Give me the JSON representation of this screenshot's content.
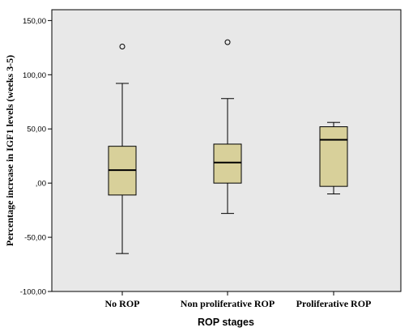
{
  "chart_data": {
    "type": "boxplot",
    "xlabel": "ROP stages",
    "ylabel": "Percentage increase in IGF1 levels (weeks 3-5)",
    "ylim": [
      -100,
      160
    ],
    "yticks": [
      -100,
      -50,
      0,
      50,
      100,
      150
    ],
    "ytick_labels": [
      "-100,00",
      "-50,00",
      ",00",
      "50,00",
      "100,00",
      "150,00"
    ],
    "grid": false,
    "colors": {
      "plot_background": "#e8e8e8",
      "box_fill": "#d8d09a",
      "stroke": "#000000"
    },
    "categories": [
      "No ROP",
      "Non proliferative ROP",
      "Proliferative ROP"
    ],
    "boxes": [
      {
        "category": "No ROP",
        "whisker_low": -65,
        "q1": -11,
        "median": 12,
        "q3": 34,
        "whisker_high": 92,
        "outliers": [
          126
        ]
      },
      {
        "category": "Non proliferative ROP",
        "whisker_low": -28,
        "q1": 0,
        "median": 19,
        "q3": 36,
        "whisker_high": 78,
        "outliers": [
          130
        ]
      },
      {
        "category": "Proliferative ROP",
        "whisker_low": -10,
        "q1": -3,
        "median": 40,
        "q3": 52,
        "whisker_high": 56,
        "outliers": []
      }
    ]
  }
}
